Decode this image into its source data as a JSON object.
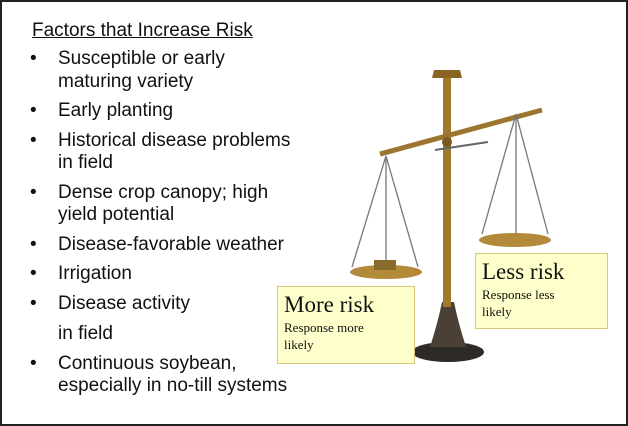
{
  "slide": {
    "title": "Factors that Increase Risk",
    "bullets": [
      {
        "lines": [
          "Susceptible or early",
          "maturing variety"
        ]
      },
      {
        "lines": [
          "Early planting"
        ]
      },
      {
        "lines": [
          "Historical disease problems",
          "in field"
        ]
      },
      {
        "lines": [
          "Dense crop canopy; high",
          "yield potential"
        ]
      },
      {
        "lines": [
          "Disease-favorable weather"
        ]
      },
      {
        "lines": [
          "Irrigation"
        ]
      },
      {
        "lines": [
          "Disease activity",
          "in field"
        ]
      },
      {
        "lines": [
          "Continuous soybean,",
          "especially in no-till systems"
        ]
      }
    ],
    "more_box": {
      "heading": "More risk",
      "lines": [
        "Response more",
        "likely"
      ]
    },
    "less_box": {
      "heading": "Less risk",
      "lines": [
        "Response less",
        "likely"
      ]
    }
  }
}
